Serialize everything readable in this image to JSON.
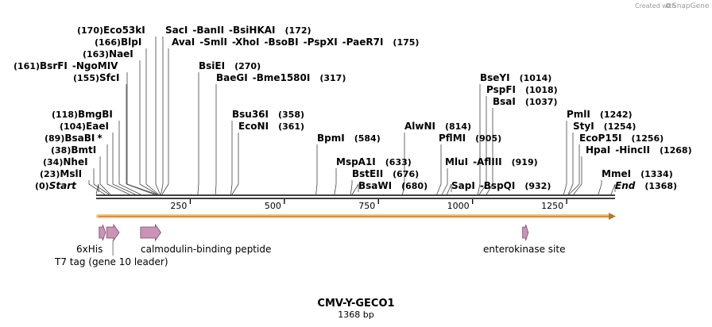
{
  "credit": {
    "prefix": "Created with",
    "brand": "SnapGene"
  },
  "map": {
    "title": "CMV-Y-GECO1",
    "length_label": "1368 bp",
    "length": 1368
  },
  "ticks": [
    "250",
    "500",
    "750",
    "1000",
    "1250"
  ],
  "enzyme_rows": [
    [
      {
        "name": "Eco53kI",
        "pos": 170,
        "pos_label": "(170)"
      },
      {
        "name": "SacI",
        "pos": 172
      },
      {
        "name": "BanII",
        "pos": 172
      },
      {
        "name": "BsiHKAI",
        "pos": 172,
        "pos_label": "(172)"
      }
    ],
    [
      {
        "name": "BlpI",
        "pos": 166,
        "pos_label": "(166)"
      },
      {
        "name": "AvaI",
        "pos": 175
      },
      {
        "name": "SmlI",
        "pos": 175
      },
      {
        "name": "XhoI",
        "pos": 175
      },
      {
        "name": "BsoBI",
        "pos": 175
      },
      {
        "name": "PspXI",
        "pos": 175
      },
      {
        "name": "PaeR7I",
        "pos": 175,
        "pos_label": "(175)"
      }
    ],
    [
      {
        "name": "NaeI",
        "pos": 163,
        "pos_label": "(163)"
      }
    ],
    [
      {
        "name": "BsrFI",
        "pos": 161,
        "pos_label": "(161)"
      },
      {
        "name": "NgoMIV",
        "pos": 161
      },
      {
        "name": "BsiEI",
        "pos": 270,
        "pos_label": "(270)"
      }
    ],
    [
      {
        "name": "SfcI",
        "pos": 155,
        "pos_label": "(155)"
      },
      {
        "name": "BaeGI",
        "pos": 317
      },
      {
        "name": "Bme1580I",
        "pos": 317,
        "pos_label": "(317)"
      },
      {
        "name": "BseYI",
        "pos": 1014,
        "pos_label": "(1014)"
      }
    ],
    [
      {
        "name": "PspFI",
        "pos": 1018,
        "pos_label": "(1018)"
      }
    ],
    [
      {
        "name": "BsaI",
        "pos": 1037,
        "pos_label": "(1037)"
      }
    ],
    [
      {
        "name": "BmgBI",
        "pos": 118,
        "pos_label": "(118)"
      },
      {
        "name": "Bsu36I",
        "pos": 358,
        "pos_label": "(358)"
      },
      {
        "name": "PmlI",
        "pos": 1242,
        "pos_label": "(1242)"
      }
    ],
    [
      {
        "name": "EaeI",
        "pos": 104,
        "pos_label": "(104)"
      },
      {
        "name": "EcoNI",
        "pos": 361,
        "pos_label": "(361)"
      },
      {
        "name": "AlwNI",
        "pos": 814,
        "pos_label": "(814)"
      },
      {
        "name": "StyI",
        "pos": 1254,
        "pos_label": "(1254)"
      }
    ],
    [
      {
        "name": "BsaBI",
        "star": "*",
        "pos": 89,
        "pos_label": "(89)"
      },
      {
        "name": "BpmI",
        "pos": 584,
        "pos_label": "(584)"
      },
      {
        "name": "PflMI",
        "pos": 905,
        "pos_label": "(905)"
      },
      {
        "name": "EcoP15I",
        "pos": 1256,
        "pos_label": "(1256)"
      }
    ],
    [
      {
        "name": "BmtI",
        "pos": 38,
        "pos_label": "(38)"
      },
      {
        "name": "HpaI",
        "pos": 1268
      },
      {
        "name": "HincII",
        "pos": 1268,
        "pos_label": "(1268)"
      }
    ],
    [
      {
        "name": "NheI",
        "pos": 34,
        "pos_label": "(34)"
      },
      {
        "name": "MspA1I",
        "pos": 633,
        "pos_label": "(633)"
      },
      {
        "name": "MluI",
        "pos": 919
      },
      {
        "name": "AflIII",
        "pos": 919,
        "pos_label": "(919)"
      }
    ],
    [
      {
        "name": "MslI",
        "pos": 23,
        "pos_label": "(23)"
      },
      {
        "name": "BstEII",
        "pos": 676,
        "pos_label": "(676)"
      },
      {
        "name": "MmeI",
        "pos": 1334,
        "pos_label": "(1334)"
      }
    ],
    [
      {
        "name": "Start",
        "pos": 0,
        "pos_label": "(0)",
        "italic": true
      },
      {
        "name": "BsaWI",
        "pos": 680,
        "pos_label": "(680)"
      },
      {
        "name": "SapI",
        "pos": 932
      },
      {
        "name": "BspQI",
        "pos": 932,
        "pos_label": "(932)"
      },
      {
        "name": "End",
        "pos": 1368,
        "pos_label": "(1368)",
        "italic": true
      }
    ]
  ],
  "features": [
    {
      "name": "6xHis",
      "start": 8,
      "end": 25,
      "color": "#c994b6"
    },
    {
      "name": "T7 tag (gene 10 leader)",
      "start": 28,
      "end": 61,
      "color": "#c994b6"
    },
    {
      "name": "calmodulin-binding peptide",
      "start": 118,
      "end": 172,
      "color": "#c994b6"
    },
    {
      "name": "enterokinase site",
      "start": 1133,
      "end": 1148,
      "color": "#c994b6"
    }
  ],
  "orf": {
    "start": 0,
    "end": 1368,
    "color": "#f4c27e"
  }
}
